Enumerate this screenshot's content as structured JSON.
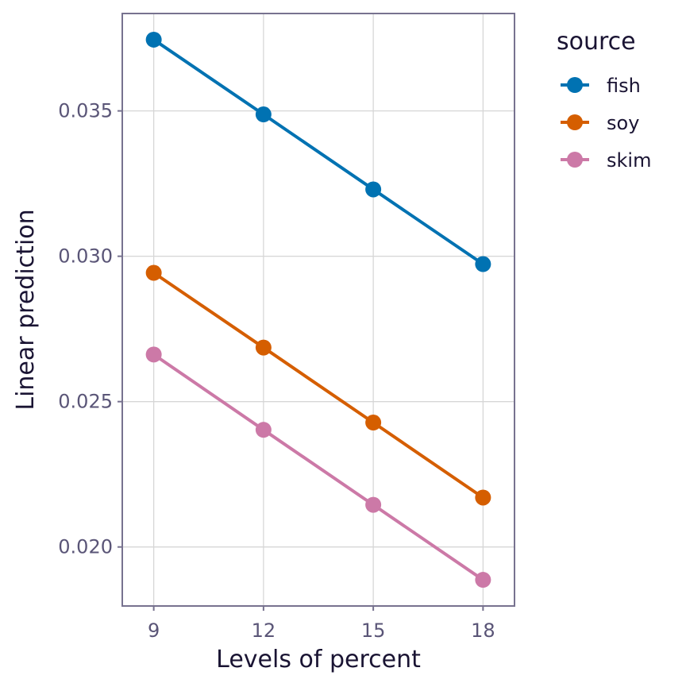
{
  "chart_data": {
    "type": "line",
    "xlabel": "Levels of percent",
    "ylabel": "Linear prediction",
    "x": [
      9,
      12,
      15,
      18
    ],
    "xticks": [
      "9",
      "12",
      "15",
      "18"
    ],
    "yticks": [
      0.02,
      0.025,
      0.03,
      0.035
    ],
    "ytick_labels": [
      "0.020",
      "0.025",
      "0.030",
      "0.035"
    ],
    "xlim": [
      8.14,
      18.86
    ],
    "ylim": [
      0.01797,
      0.03835
    ],
    "grid": true,
    "legend": {
      "title": "source",
      "placement": "right"
    },
    "series": [
      {
        "name": "fish",
        "color": "#0072B2",
        "values": [
          0.03745,
          0.03488,
          0.0323,
          0.02973
        ]
      },
      {
        "name": "soy",
        "color": "#D55E00",
        "values": [
          0.02943,
          0.02686,
          0.02428,
          0.0217
        ]
      },
      {
        "name": "skim",
        "color": "#CC79A7",
        "values": [
          0.02662,
          0.02403,
          0.02145,
          0.01887
        ]
      }
    ]
  }
}
